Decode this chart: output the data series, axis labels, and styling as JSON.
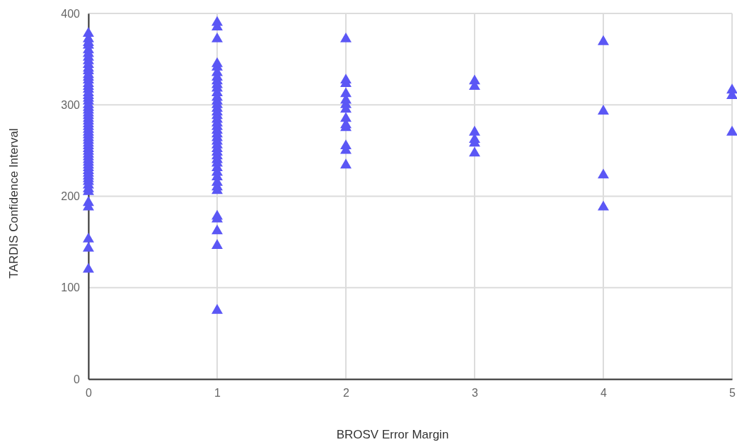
{
  "chart_data": {
    "type": "scatter",
    "xlabel": "BROSV Error Margin",
    "ylabel": "TARDIS Confidence Interval",
    "xlim": [
      0,
      5
    ],
    "xticks": [
      0,
      1,
      2,
      3,
      4,
      5
    ],
    "ylim": [
      0,
      400
    ],
    "yticks": [
      0,
      100,
      200,
      300,
      400
    ],
    "grid": true,
    "marker": "triangle",
    "series": [
      {
        "color": "#5b57f5",
        "x": [
          0,
          0,
          0,
          0,
          0,
          0,
          0,
          0,
          0,
          0,
          0,
          0,
          0,
          0,
          0,
          0,
          0,
          0,
          0,
          0,
          0,
          0,
          0,
          0,
          0,
          0,
          0,
          0,
          0,
          0,
          0,
          0,
          0,
          0,
          0,
          0,
          0,
          0,
          0,
          0,
          0,
          0,
          0,
          0,
          0,
          0,
          0,
          0,
          0,
          0,
          0,
          0,
          0,
          0,
          0,
          0,
          0,
          0,
          1,
          1,
          1,
          1,
          1,
          1,
          1,
          1,
          1,
          1,
          1,
          1,
          1,
          1,
          1,
          1,
          1,
          1,
          1,
          1,
          1,
          1,
          1,
          1,
          1,
          1,
          1,
          1,
          1,
          1,
          1,
          1,
          1,
          1,
          1,
          1,
          1,
          1,
          1,
          1,
          1,
          2,
          2,
          2,
          2,
          2,
          2,
          2,
          2,
          2,
          2,
          2,
          2,
          2,
          3,
          3,
          3,
          3,
          3,
          3,
          4,
          4,
          4,
          4,
          5,
          5,
          5
        ],
        "values": [
          378,
          372,
          368,
          365,
          360,
          356,
          352,
          348,
          344,
          340,
          337,
          333,
          330,
          327,
          323,
          320,
          317,
          313,
          310,
          307,
          304,
          300,
          297,
          294,
          291,
          288,
          285,
          282,
          279,
          276,
          273,
          270,
          267,
          264,
          261,
          258,
          255,
          252,
          249,
          246,
          243,
          240,
          237,
          234,
          231,
          228,
          225,
          222,
          219,
          216,
          212,
          208,
          205,
          193,
          188,
          153,
          143,
          120,
          390,
          385,
          372,
          345,
          341,
          335,
          330,
          326,
          322,
          318,
          313,
          308,
          304,
          300,
          296,
          292,
          288,
          284,
          280,
          276,
          272,
          268,
          264,
          260,
          256,
          252,
          248,
          244,
          240,
          236,
          231,
          226,
          221,
          215,
          210,
          206,
          178,
          175,
          162,
          146,
          75,
          372,
          327,
          323,
          312,
          305,
          300,
          295,
          285,
          278,
          275,
          255,
          250,
          234,
          326,
          320,
          270,
          262,
          258,
          247,
          369,
          293,
          223,
          188,
          316,
          310,
          270
        ]
      }
    ]
  }
}
